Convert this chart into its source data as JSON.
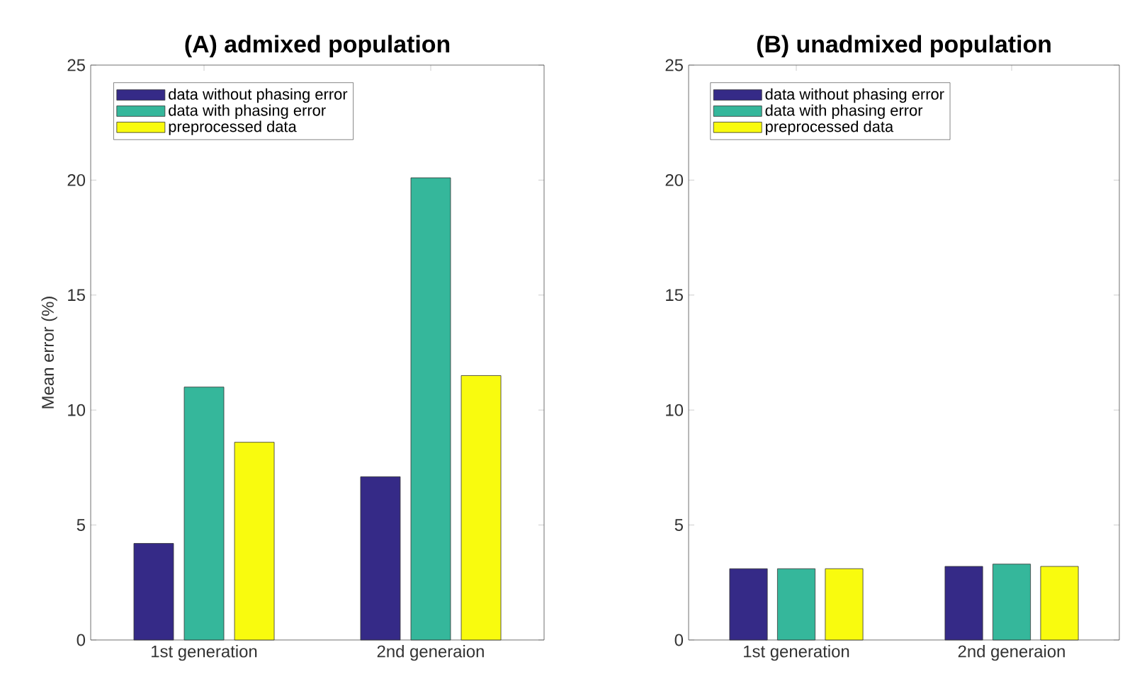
{
  "chart_data": [
    {
      "type": "bar",
      "title": "(A) admixed population",
      "ylabel": "Mean error (%)",
      "categories": [
        "1st generation",
        "2nd generaion"
      ],
      "ylim": [
        0,
        25
      ],
      "yticks": [
        0,
        5,
        10,
        15,
        20,
        25
      ],
      "legend": "top left",
      "series": [
        {
          "name": "data without phasing error",
          "color": "#352a87",
          "values": [
            4.2,
            7.1
          ]
        },
        {
          "name": "data with phasing error",
          "color": "#35b79b",
          "values": [
            11.0,
            20.1
          ]
        },
        {
          "name": "preprocessed data",
          "color": "#f9fb0e",
          "values": [
            8.6,
            11.5
          ]
        }
      ]
    },
    {
      "type": "bar",
      "title": "(B) unadmixed population",
      "categories": [
        "1st generation",
        "2nd generaion"
      ],
      "ylim": [
        0,
        25
      ],
      "yticks": [
        0,
        5,
        10,
        15,
        20,
        25
      ],
      "legend": "top left",
      "series": [
        {
          "name": "data without phasing error",
          "color": "#352a87",
          "values": [
            3.1,
            3.2
          ]
        },
        {
          "name": "data with phasing error",
          "color": "#35b79b",
          "values": [
            3.1,
            3.3
          ]
        },
        {
          "name": "preprocessed data",
          "color": "#f9fb0e",
          "values": [
            3.1,
            3.2
          ]
        }
      ]
    }
  ]
}
